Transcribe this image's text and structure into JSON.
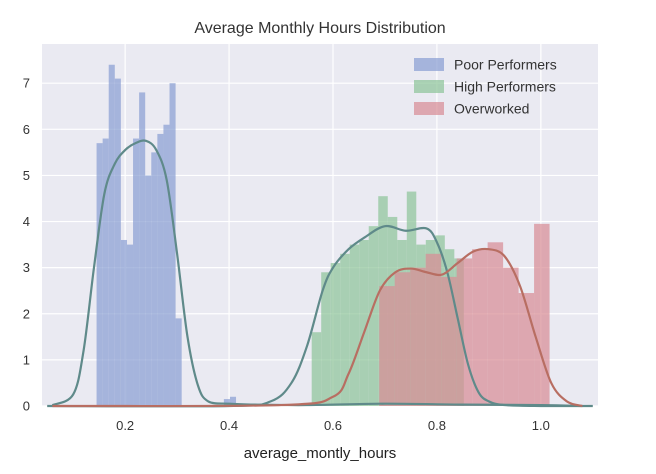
{
  "chart_data": {
    "type": "histogram",
    "title": "Average Monthly Hours Distribution",
    "xlabel": "average_montly_hours",
    "ylabel": "",
    "xlim": [
      0.04,
      1.11
    ],
    "ylim": [
      0,
      7.85
    ],
    "x_ticks": [
      0.2,
      0.4,
      0.6,
      0.8,
      1.0
    ],
    "x_tick_labels": [
      "0.2",
      "0.4",
      "0.6",
      "0.8",
      "1.0"
    ],
    "y_ticks": [
      0,
      1,
      2,
      3,
      4,
      5,
      6,
      7
    ],
    "y_tick_labels": [
      "0",
      "1",
      "2",
      "3",
      "4",
      "5",
      "6",
      "7"
    ],
    "grid": true,
    "legend_position": "top-right",
    "series": [
      {
        "name": "Poor Performers",
        "color": "#8ba0d3",
        "kde_color": "#5f8a8a",
        "bin_width": 0.0117,
        "bins": [
          {
            "x": 0.145,
            "y": 5.7
          },
          {
            "x": 0.1567,
            "y": 5.8
          },
          {
            "x": 0.1684,
            "y": 7.4
          },
          {
            "x": 0.1801,
            "y": 7.1
          },
          {
            "x": 0.1918,
            "y": 3.6
          },
          {
            "x": 0.2035,
            "y": 3.5
          },
          {
            "x": 0.2152,
            "y": 5.8
          },
          {
            "x": 0.2269,
            "y": 6.8
          },
          {
            "x": 0.2386,
            "y": 5.0
          },
          {
            "x": 0.2503,
            "y": 5.5
          },
          {
            "x": 0.262,
            "y": 5.9
          },
          {
            "x": 0.2737,
            "y": 6.1
          },
          {
            "x": 0.2854,
            "y": 7.0
          },
          {
            "x": 0.2971,
            "y": 1.9
          },
          {
            "x": 0.39,
            "y": 0.15
          },
          {
            "x": 0.4017,
            "y": 0.2
          }
        ],
        "kde_x": [
          0.06,
          0.1,
          0.12,
          0.14,
          0.16,
          0.18,
          0.2,
          0.22,
          0.24,
          0.26,
          0.28,
          0.3,
          0.32,
          0.34,
          0.36,
          0.4,
          0.45,
          0.55,
          0.7,
          0.85,
          1.0,
          1.08
        ],
        "kde_y": [
          0.02,
          0.25,
          1.2,
          3.0,
          4.6,
          5.25,
          5.55,
          5.7,
          5.75,
          5.55,
          4.9,
          3.3,
          1.5,
          0.45,
          0.1,
          0.05,
          0.03,
          0.02,
          0.05,
          0.03,
          0.02,
          0.0
        ]
      },
      {
        "name": "High Performers",
        "color": "#8fc59a",
        "kde_color": "#5f8a8a",
        "bin_width": 0.0183,
        "bins": [
          {
            "x": 0.559,
            "y": 1.6
          },
          {
            "x": 0.5773,
            "y": 2.9
          },
          {
            "x": 0.5956,
            "y": 3.1
          },
          {
            "x": 0.6139,
            "y": 3.3
          },
          {
            "x": 0.6322,
            "y": 3.5
          },
          {
            "x": 0.6505,
            "y": 3.6
          },
          {
            "x": 0.6688,
            "y": 3.9
          },
          {
            "x": 0.6871,
            "y": 4.55
          },
          {
            "x": 0.7054,
            "y": 4.1
          },
          {
            "x": 0.7237,
            "y": 3.6
          },
          {
            "x": 0.742,
            "y": 4.65
          },
          {
            "x": 0.7603,
            "y": 3.5
          },
          {
            "x": 0.7786,
            "y": 3.6
          },
          {
            "x": 0.7969,
            "y": 3.7
          },
          {
            "x": 0.8152,
            "y": 3.4
          },
          {
            "x": 0.8335,
            "y": 3.2
          }
        ],
        "kde_x": [
          0.05,
          0.4,
          0.48,
          0.52,
          0.55,
          0.58,
          0.6,
          0.63,
          0.66,
          0.7,
          0.74,
          0.78,
          0.8,
          0.82,
          0.84,
          0.86,
          0.88,
          0.9,
          0.93,
          1.0,
          1.1
        ],
        "kde_y": [
          0.0,
          0.0,
          0.1,
          0.5,
          1.3,
          2.5,
          3.0,
          3.4,
          3.65,
          3.9,
          3.8,
          3.85,
          3.55,
          2.9,
          1.9,
          0.9,
          0.3,
          0.1,
          0.02,
          0.0,
          0.0
        ]
      },
      {
        "name": "Overworked",
        "color": "#d88d95",
        "kde_color": "#b86e62",
        "bin_width": 0.0298,
        "bins": [
          {
            "x": 0.689,
            "y": 2.6
          },
          {
            "x": 0.7188,
            "y": 2.9
          },
          {
            "x": 0.7486,
            "y": 3.0
          },
          {
            "x": 0.7784,
            "y": 3.3
          },
          {
            "x": 0.8082,
            "y": 2.8
          },
          {
            "x": 0.838,
            "y": 3.2
          },
          {
            "x": 0.8678,
            "y": 3.4
          },
          {
            "x": 0.8976,
            "y": 3.55
          },
          {
            "x": 0.9274,
            "y": 3.0
          },
          {
            "x": 0.9572,
            "y": 2.45
          },
          {
            "x": 0.987,
            "y": 3.95
          }
        ],
        "kde_x": [
          0.06,
          0.5,
          0.6,
          0.63,
          0.66,
          0.69,
          0.72,
          0.75,
          0.78,
          0.81,
          0.84,
          0.87,
          0.9,
          0.93,
          0.96,
          0.99,
          1.02,
          1.05,
          1.08
        ],
        "kde_y": [
          0.0,
          0.02,
          0.2,
          0.7,
          1.6,
          2.5,
          2.9,
          2.98,
          2.9,
          2.85,
          3.1,
          3.35,
          3.4,
          3.25,
          2.6,
          1.5,
          0.5,
          0.1,
          0.0
        ]
      }
    ]
  }
}
